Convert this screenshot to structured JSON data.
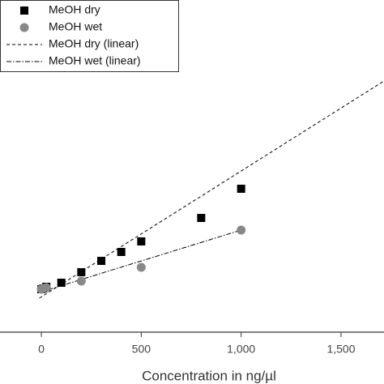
{
  "chart_data": {
    "type": "scatter",
    "xlabel": "Concentration  in ng/µl",
    "xlim": [
      -207,
      1715
    ],
    "xticks": [
      0,
      500,
      {
        "value": 1000,
        "label": "1,000"
      },
      {
        "value": 1500,
        "label": "1,500"
      }
    ],
    "ylim": [
      0,
      410
    ],
    "legend": "upper left",
    "series": [
      {
        "name": "MeOH dry",
        "kind": "points",
        "marker": "square",
        "color": "#000000",
        "x": [
          0,
          10,
          25,
          100,
          200,
          300,
          400,
          500,
          800,
          1000
        ],
        "values": [
          53,
          54,
          56,
          61,
          74,
          88,
          99,
          112,
          141,
          177
        ]
      },
      {
        "name": "MeOH wet",
        "kind": "points",
        "marker": "circle",
        "color": "#888888",
        "x": [
          0,
          10,
          25,
          200,
          500,
          1000
        ],
        "values": [
          53,
          54,
          55,
          63,
          80,
          126
        ]
      },
      {
        "name": "MeOH dry (linear)",
        "kind": "line",
        "dash": "dashed",
        "color": "#000000",
        "x": [
          -10,
          1715
        ],
        "values": [
          42,
          310
        ]
      },
      {
        "name": "MeOH wet (linear)",
        "kind": "line",
        "dash": "dashdot",
        "color": "#000000",
        "x": [
          -10,
          1000
        ],
        "values": [
          49,
          126
        ]
      }
    ]
  }
}
